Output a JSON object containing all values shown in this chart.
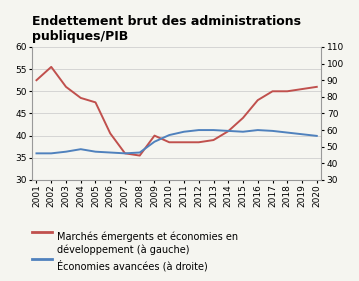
{
  "title": "Endettement brut des administrations\npubliques/PIB",
  "years": [
    2001,
    2002,
    2003,
    2004,
    2005,
    2006,
    2007,
    2008,
    2009,
    2010,
    2011,
    2012,
    2013,
    2014,
    2015,
    2016,
    2017,
    2018,
    2019,
    2020
  ],
  "emerging": [
    52.5,
    55.5,
    51,
    48.5,
    47.5,
    40.5,
    36,
    35.5,
    40,
    38.5,
    38.5,
    38.5,
    39,
    41,
    44,
    48,
    50,
    50,
    50.5,
    51
  ],
  "advanced": [
    46,
    46,
    47,
    48.5,
    47,
    46.5,
    46,
    46.5,
    53,
    57,
    59,
    60,
    60,
    59.5,
    59,
    60,
    59.5,
    58.5,
    57.5,
    56.5
  ],
  "left_ylim": [
    30,
    60
  ],
  "right_ylim": [
    30,
    110
  ],
  "left_yticks": [
    30,
    35,
    40,
    45,
    50,
    55,
    60
  ],
  "right_yticks": [
    30,
    40,
    50,
    60,
    70,
    80,
    90,
    100,
    110
  ],
  "emerging_color": "#c0504d",
  "advanced_color": "#4f81bd",
  "background_color": "#f5f5f0",
  "legend_emerging": "Marchés émergents et économies en\ndéveloppement (à gauche)",
  "legend_advanced": "Économies avancées (à droite)",
  "title_fontsize": 9,
  "legend_fontsize": 7,
  "tick_fontsize": 6.5
}
